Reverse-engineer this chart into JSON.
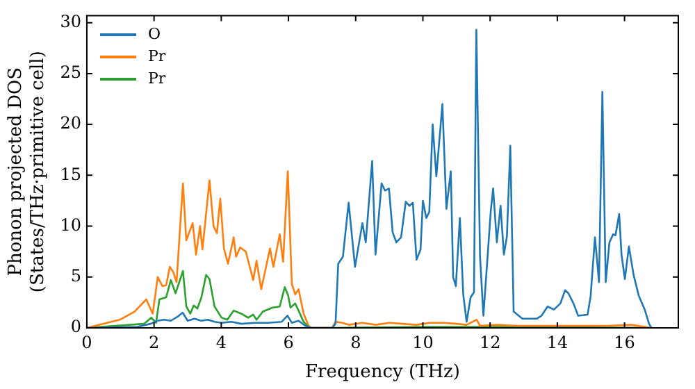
{
  "chart_data": {
    "type": "line",
    "xlabel": "Frequency (THz)",
    "ylabel": "Phonon projected DOS\n(States/THz·primitive cell)",
    "xlim": [
      0,
      17.6
    ],
    "xticks": [
      0,
      2,
      4,
      6,
      8,
      10,
      12,
      14,
      16
    ],
    "ylim": [
      0,
      30.7
    ],
    "yticks": [
      0,
      5,
      10,
      15,
      20,
      25,
      30
    ],
    "grid": false,
    "legend": "top left",
    "marker": "none",
    "line_style": "solid",
    "series": [
      {
        "name": "O",
        "color": "#1f77b4",
        "x": [
          0,
          1.5,
          1.9,
          2.1,
          2.3,
          2.5,
          2.7,
          2.85,
          3.0,
          3.2,
          3.4,
          3.6,
          3.8,
          4.0,
          4.3,
          4.6,
          5.0,
          5.4,
          5.8,
          5.97,
          6.1,
          6.3,
          6.5,
          6.7,
          7.3,
          7.4,
          7.48,
          7.62,
          7.79,
          7.98,
          8.2,
          8.3,
          8.49,
          8.59,
          8.77,
          8.87,
          8.99,
          9.1,
          9.21,
          9.35,
          9.49,
          9.6,
          9.7,
          9.81,
          9.93,
          10.0,
          10.1,
          10.19,
          10.29,
          10.4,
          10.58,
          10.7,
          10.83,
          10.9,
          10.98,
          11.1,
          11.2,
          11.3,
          11.42,
          11.52,
          11.59,
          11.7,
          11.8,
          12.02,
          12.09,
          12.2,
          12.31,
          12.41,
          12.5,
          12.6,
          12.7,
          12.96,
          13.39,
          13.53,
          13.71,
          13.9,
          14.09,
          14.23,
          14.33,
          14.48,
          14.62,
          14.9,
          14.99,
          15.12,
          15.24,
          15.34,
          15.44,
          15.55,
          15.66,
          15.73,
          15.84,
          15.91,
          16.01,
          16.13,
          16.27,
          16.42,
          16.6,
          16.73,
          16.8
        ],
        "values": [
          0,
          0.1,
          0.4,
          0.7,
          0.8,
          0.7,
          1.1,
          1.5,
          0.7,
          0.9,
          0.7,
          0.8,
          0.6,
          0.5,
          0.6,
          0.4,
          0.5,
          0.5,
          0.6,
          1.2,
          0.5,
          0.7,
          0.2,
          0,
          0,
          0.4,
          6.3,
          7,
          12.3,
          6,
          10.3,
          8.4,
          16.4,
          7.2,
          14.2,
          13.5,
          13.7,
          9.4,
          8.4,
          8.9,
          12.4,
          12,
          12.3,
          6.7,
          7.7,
          12.5,
          10.8,
          11.4,
          20,
          14.9,
          22,
          11.7,
          15.4,
          5,
          4.1,
          10.8,
          3.3,
          0.6,
          3,
          3.5,
          29.3,
          7,
          1.2,
          11.5,
          13.7,
          8.4,
          12,
          7.2,
          9,
          17.9,
          1.6,
          0.9,
          0.9,
          1.2,
          2.1,
          1.8,
          2.4,
          3.7,
          3.4,
          2.4,
          1.2,
          1.3,
          3.1,
          8.9,
          4.5,
          23.2,
          4.5,
          8.4,
          9.2,
          9.1,
          11.2,
          7.2,
          4.8,
          8,
          5.2,
          3.2,
          1.8,
          0.4,
          0
        ]
      },
      {
        "name": "Pr",
        "color": "#ff7f0e",
        "x": [
          0,
          0.98,
          1.42,
          1.77,
          1.96,
          2.11,
          2.25,
          2.36,
          2.47,
          2.57,
          2.67,
          2.86,
          2.96,
          3.15,
          3.25,
          3.37,
          3.44,
          3.65,
          3.77,
          3.87,
          3.97,
          4.08,
          4.2,
          4.37,
          4.44,
          4.56,
          4.73,
          4.95,
          5.05,
          5.19,
          5.45,
          5.55,
          5.74,
          5.84,
          5.98,
          6.1,
          6.2,
          6.3,
          6.45,
          6.6,
          6.66,
          7.3,
          7.4,
          7.6,
          7.8,
          8.2,
          8.6,
          9.0,
          9.4,
          9.8,
          10.2,
          10.6,
          11.0,
          11.3,
          11.6,
          11.7,
          12.2,
          12.8,
          13.5,
          14.5,
          15.5,
          16.2,
          16.8
        ],
        "values": [
          0,
          0.8,
          1.6,
          2.8,
          1.4,
          5,
          4.1,
          4.2,
          6,
          5.5,
          4.5,
          14.2,
          8.6,
          10.3,
          7.2,
          10,
          7.7,
          14.5,
          10,
          9.3,
          12.7,
          7.8,
          6.3,
          8.9,
          7,
          7.9,
          7.5,
          4.7,
          6.6,
          3.8,
          7.8,
          6,
          9.2,
          6.5,
          15.4,
          4.3,
          3.3,
          3.8,
          1.4,
          0.2,
          0,
          0,
          0.6,
          0.5,
          0.3,
          0.5,
          0.3,
          0.5,
          0.4,
          0.3,
          0.5,
          0.5,
          0.4,
          0.3,
          0.8,
          0.2,
          0.3,
          0.2,
          0.2,
          0.2,
          0.2,
          0.3,
          0
        ]
      },
      {
        "name": "Pr",
        "color": "#2ca02c",
        "x": [
          0,
          1.7,
          1.92,
          2.06,
          2.16,
          2.36,
          2.5,
          2.64,
          2.86,
          2.96,
          3.08,
          3.18,
          3.29,
          3.41,
          3.55,
          3.65,
          3.8,
          4.01,
          4.18,
          4.37,
          4.59,
          4.8,
          4.95,
          5.05,
          5.24,
          5.53,
          5.74,
          5.89,
          5.99,
          6.06,
          6.2,
          6.3,
          6.45,
          6.6,
          6.66,
          7.3,
          10,
          13,
          16.8
        ],
        "values": [
          0,
          0.4,
          1,
          0.5,
          2.8,
          3,
          4.7,
          3.4,
          5.6,
          2.1,
          1.4,
          2.2,
          1.9,
          3,
          5.2,
          4.8,
          2.1,
          1,
          0.8,
          1.7,
          1.4,
          1,
          1.3,
          0.8,
          1.6,
          2,
          2.1,
          4,
          3.2,
          2,
          2.4,
          1.7,
          0.6,
          0.1,
          0,
          0,
          0.1,
          0.1,
          0
        ]
      }
    ]
  }
}
